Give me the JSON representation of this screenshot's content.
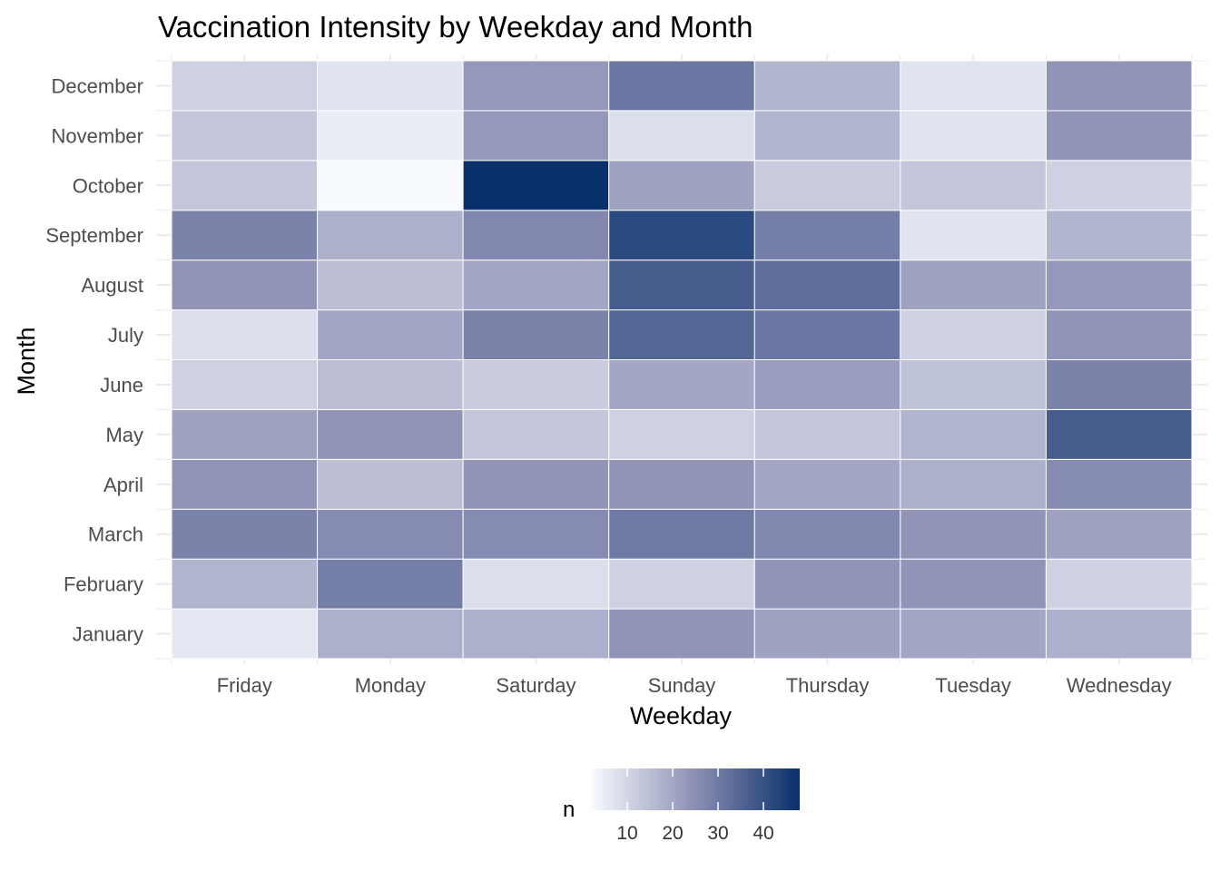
{
  "chart_data": {
    "type": "heatmap",
    "title": "Vaccination Intensity by Weekday and Month",
    "xlabel": "Weekday",
    "ylabel": "Month",
    "x_categories": [
      "Friday",
      "Monday",
      "Saturday",
      "Sunday",
      "Thursday",
      "Tuesday",
      "Wednesday"
    ],
    "y_categories": [
      "January",
      "February",
      "March",
      "April",
      "May",
      "June",
      "July",
      "August",
      "September",
      "October",
      "November",
      "December"
    ],
    "values": [
      [
        6,
        18,
        18,
        24,
        21,
        20,
        18
      ],
      [
        17,
        29,
        8,
        11,
        24,
        24,
        11
      ],
      [
        28,
        26,
        26,
        30,
        27,
        24,
        21
      ],
      [
        24,
        15,
        24,
        24,
        20,
        18,
        26
      ],
      [
        21,
        24,
        13,
        11,
        13,
        17,
        37
      ],
      [
        11,
        15,
        12,
        20,
        22,
        14,
        28
      ],
      [
        8,
        20,
        28,
        35,
        31,
        11,
        24
      ],
      [
        24,
        15,
        20,
        37,
        33,
        21,
        23
      ],
      [
        28,
        18,
        27,
        42,
        29,
        7,
        17
      ],
      [
        13,
        2,
        48,
        21,
        12,
        13,
        11
      ],
      [
        13,
        5,
        23,
        8,
        17,
        7,
        24
      ],
      [
        11,
        7,
        23,
        31,
        17,
        7,
        24
      ]
    ],
    "color_scale": {
      "low": "#f7fbff",
      "mid": "#8c8fb4",
      "high": "#08306b",
      "min": 2,
      "max": 48
    },
    "legend": {
      "title": "n",
      "ticks": [
        10,
        20,
        30,
        40
      ],
      "placement": "bottom"
    },
    "grid": true
  }
}
